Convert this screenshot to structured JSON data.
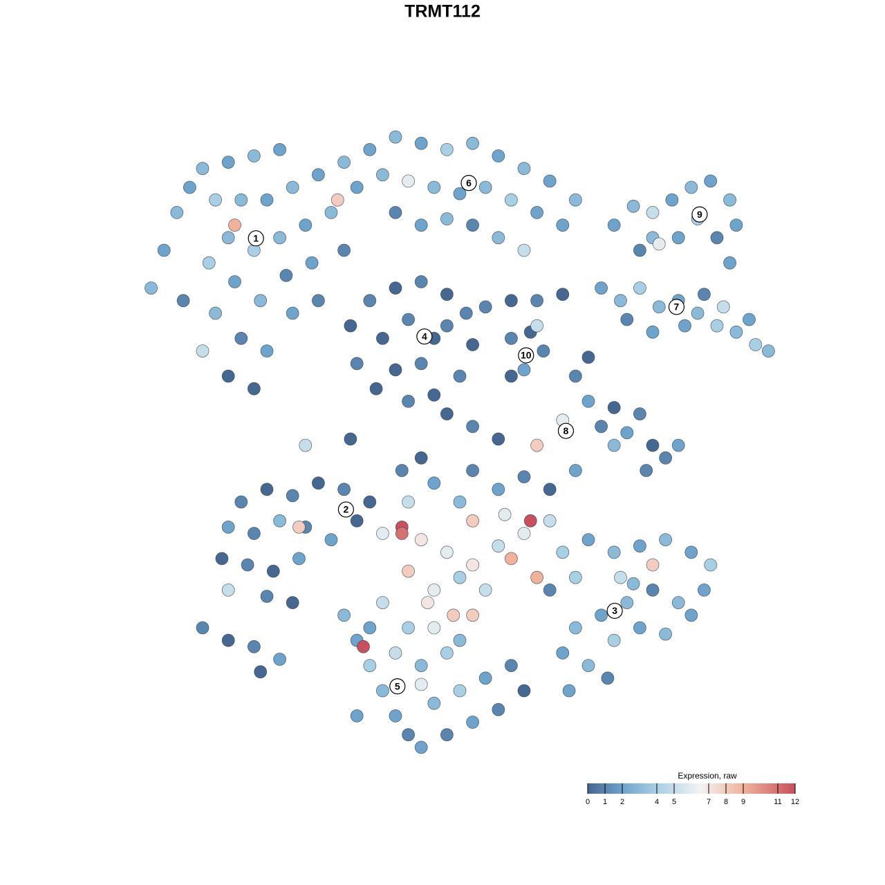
{
  "chart_data": {
    "type": "scatter",
    "title": "TRMT112",
    "xlim": [
      0,
      100
    ],
    "ylim": [
      0,
      100
    ],
    "x": [
      2,
      4,
      6,
      8,
      10,
      14,
      18,
      22,
      12,
      16,
      20,
      24,
      28,
      14,
      18,
      22,
      26,
      30,
      15,
      19,
      23,
      27,
      12,
      16,
      20,
      14,
      18,
      11,
      15,
      32,
      7,
      10,
      24,
      28,
      32,
      36,
      40,
      44,
      48,
      52,
      56,
      60,
      64,
      68,
      34,
      38,
      42,
      46,
      50,
      54,
      58,
      62,
      40,
      44,
      48,
      31,
      52,
      56,
      60,
      66,
      74,
      77,
      80,
      83,
      86,
      89,
      92,
      93,
      90,
      87,
      84,
      80,
      78,
      92,
      81,
      72,
      75,
      78,
      81,
      84,
      87,
      90,
      93,
      96,
      98,
      85,
      88,
      80,
      91,
      76,
      95,
      33,
      36,
      40,
      44,
      48,
      51,
      52,
      50,
      46,
      42,
      37,
      34,
      38,
      42,
      46,
      44,
      40,
      48,
      54,
      58,
      62,
      66,
      58,
      61,
      63,
      60,
      58,
      62,
      68,
      70,
      72,
      74,
      76,
      78,
      80,
      82,
      84,
      79,
      74,
      70,
      62,
      66,
      26,
      33,
      44,
      52,
      56,
      48,
      41,
      16,
      20,
      24,
      28,
      32,
      36,
      14,
      18,
      22,
      26,
      30,
      13,
      17,
      21,
      25,
      14,
      20,
      24,
      10,
      14,
      18,
      22,
      19,
      25,
      34,
      32,
      34,
      36,
      38,
      40,
      42,
      44,
      48,
      52,
      56,
      60,
      46,
      50,
      54,
      40,
      44,
      48,
      36,
      42,
      46,
      50,
      58,
      35,
      38,
      52,
      44,
      34,
      41,
      41,
      52,
      38,
      44,
      48,
      52,
      56,
      60,
      64,
      61,
      58,
      42,
      46,
      50,
      54,
      62,
      66,
      46,
      52,
      56,
      60,
      64,
      68,
      50,
      42,
      57,
      49,
      45,
      70,
      74,
      78,
      82,
      86,
      89,
      88,
      84,
      80,
      76,
      72,
      68,
      66,
      70,
      74,
      78,
      82,
      86,
      64,
      68,
      75,
      77,
      80,
      73,
      67
    ],
    "y": [
      74,
      80,
      86,
      90,
      93,
      94,
      95,
      96,
      88,
      88,
      88,
      90,
      92,
      82,
      80,
      82,
      84,
      86,
      75,
      72,
      76,
      78,
      70,
      66,
      64,
      60,
      58,
      78,
      84,
      80,
      72,
      64,
      70,
      72,
      94,
      96,
      98,
      97,
      96,
      97,
      95,
      93,
      91,
      88,
      90,
      92,
      91,
      90,
      89,
      90,
      88,
      86,
      86,
      84,
      85,
      88,
      84,
      82,
      80,
      84,
      84,
      87,
      86,
      88,
      90,
      91,
      88,
      84,
      82,
      85,
      82,
      82,
      80,
      78,
      81,
      74,
      72,
      74,
      71,
      72,
      70,
      68,
      67,
      65,
      64,
      68,
      73,
      67,
      71,
      69,
      69,
      68,
      72,
      74,
      75,
      73,
      70,
      65,
      60,
      57,
      56,
      58,
      62,
      66,
      69,
      66,
      62,
      61,
      68,
      71,
      72,
      72,
      73,
      66,
      67,
      64,
      61,
      60,
      68,
      60,
      56,
      52,
      55,
      51,
      54,
      49,
      47,
      49,
      45,
      49,
      63,
      49,
      53,
      49,
      50,
      47,
      52,
      50,
      54,
      45,
      40,
      42,
      41,
      43,
      42,
      40,
      36,
      35,
      37,
      36,
      34,
      31,
      30,
      29,
      31,
      26,
      25,
      24,
      20,
      18,
      17,
      15,
      13,
      36,
      37,
      22,
      18,
      14,
      10,
      6,
      3,
      1,
      3,
      5,
      7,
      10,
      8,
      10,
      12,
      16,
      14,
      16,
      20,
      20,
      20,
      18,
      14,
      17,
      24,
      22,
      11,
      6,
      36,
      35,
      37,
      35,
      34,
      32,
      30,
      33,
      35,
      37,
      37,
      31,
      29,
      26,
      28,
      26,
      28,
      32,
      43,
      45,
      42,
      44,
      42,
      45,
      40,
      40,
      38,
      22,
      24,
      34,
      32,
      33,
      34,
      32,
      30,
      26,
      24,
      26,
      24,
      22,
      20,
      16,
      14,
      18,
      20,
      19,
      22,
      26,
      28,
      28,
      27,
      30,
      12,
      10
    ],
    "values": [
      3,
      2,
      3,
      2,
      3,
      2,
      3,
      2,
      4,
      3,
      2,
      3,
      2,
      3,
      4,
      3,
      2,
      3,
      2,
      3,
      1,
      2,
      3,
      1,
      2,
      0,
      0,
      4,
      9,
      1,
      1,
      5,
      2,
      1,
      3,
      2,
      3,
      2,
      4,
      3,
      2,
      3,
      2,
      3,
      2,
      3,
      6,
      3,
      2,
      3,
      4,
      2,
      1,
      2,
      3,
      8,
      1,
      3,
      5,
      2,
      2,
      3,
      5,
      2,
      3,
      2,
      3,
      2,
      1,
      4,
      2,
      3,
      1,
      2,
      6,
      2,
      3,
      4,
      3,
      2,
      3,
      4,
      3,
      4,
      3,
      2,
      1,
      2,
      5,
      1,
      2,
      0,
      1,
      0,
      1,
      0,
      1,
      0,
      1,
      0,
      1,
      0,
      1,
      0,
      1,
      0,
      1,
      0,
      1,
      1,
      0,
      1,
      0,
      1,
      0,
      1,
      2,
      0,
      5,
      1,
      2,
      1,
      0,
      2,
      1,
      0,
      1,
      2,
      1,
      3,
      0,
      8,
      6,
      5,
      0,
      0,
      1,
      0,
      0,
      1,
      1,
      0,
      1,
      0,
      1,
      0,
      2,
      1,
      3,
      1,
      2,
      0,
      1,
      0,
      2,
      5,
      1,
      0,
      1,
      0,
      1,
      2,
      0,
      8,
      0,
      3,
      2,
      4,
      3,
      2,
      1,
      2,
      1,
      2,
      1,
      0,
      3,
      4,
      2,
      5,
      3,
      4,
      2,
      4,
      6,
      3,
      1,
      12,
      5,
      8,
      6,
      2,
      12,
      11,
      8,
      6,
      7,
      6,
      7,
      5,
      6,
      5,
      12,
      9,
      8,
      6,
      4,
      5,
      9,
      4,
      2,
      1,
      2,
      1,
      0,
      2,
      3,
      5,
      6,
      8,
      7,
      2,
      3,
      2,
      3,
      2,
      4,
      2,
      3,
      1,
      3,
      2,
      3,
      2,
      3,
      4,
      2,
      3,
      2,
      1,
      4,
      5,
      3,
      8,
      1,
      2
    ],
    "clusters": [
      {
        "label": "1",
        "x": 18.3,
        "y": 81.9
      },
      {
        "label": "6",
        "x": 51.4,
        "y": 90.7
      },
      {
        "label": "9",
        "x": 87.3,
        "y": 85.7
      },
      {
        "label": "7",
        "x": 83.7,
        "y": 71
      },
      {
        "label": "4",
        "x": 44.5,
        "y": 66.3
      },
      {
        "label": "10",
        "x": 60.3,
        "y": 63.3
      },
      {
        "label": "8",
        "x": 66.5,
        "y": 51.3
      },
      {
        "label": "2",
        "x": 32.3,
        "y": 38.8
      },
      {
        "label": "3",
        "x": 74.1,
        "y": 22.7
      },
      {
        "label": "5",
        "x": 40.3,
        "y": 10.7
      }
    ],
    "colorbar": {
      "title": "Expression, raw",
      "clim": [
        0,
        12
      ],
      "ticks": [
        0,
        1,
        2,
        4,
        5,
        7,
        8,
        9,
        11,
        12
      ],
      "colorscale": [
        [
          0,
          "#46678f"
        ],
        [
          2,
          "#6ea3cc"
        ],
        [
          4,
          "#a8cfe4"
        ],
        [
          6.5,
          "#f3f3f3"
        ],
        [
          9,
          "#f1b29c"
        ],
        [
          12,
          "#c8505d"
        ]
      ]
    }
  }
}
